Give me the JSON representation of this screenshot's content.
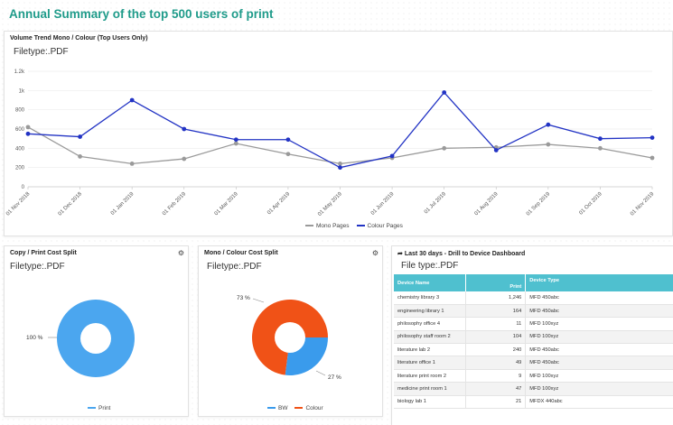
{
  "page": {
    "title": "Annual Summary of the top 500 users of print"
  },
  "trend": {
    "title": "Volume Trend Mono / Colour (Top Users Only)",
    "subtitle": "Filetype:.PDF",
    "legend": {
      "mono": "Mono Pages",
      "colour": "Colour Pages"
    },
    "colors": {
      "mono": "#9a9a9a",
      "colour": "#2233c4"
    }
  },
  "copy_print": {
    "title": "Copy / Print Cost Split",
    "subtitle": "Filetype:.PDF",
    "slice_label": "100 %",
    "legend": {
      "print": "Print"
    },
    "colors": {
      "print": "#4ba6ef"
    }
  },
  "mono_colour": {
    "title": "Mono / Colour Cost Split",
    "subtitle": "Filetype:.PDF",
    "label_colour": "73 %",
    "label_bw": "27 %",
    "legend": {
      "bw": "BW",
      "colour": "Colour"
    },
    "colors": {
      "bw": "#3a9bec",
      "colour": "#f05217"
    }
  },
  "devices": {
    "title": "Last 30 days - Drill to Device Dashboard",
    "subtitle": "File type:.PDF",
    "headers": {
      "name": "Device Name",
      "print": "Print",
      "type": "Device Type"
    },
    "rows": [
      {
        "name": "chemistry library 3",
        "print": "1,246",
        "type": "MFD 450abc"
      },
      {
        "name": "engineering library 1",
        "print": "164",
        "type": "MFD 450abc"
      },
      {
        "name": "philosophy office 4",
        "print": "11",
        "type": "MFD 100xyz"
      },
      {
        "name": "philosophy staff room 2",
        "print": "104",
        "type": "MFD 100xyz"
      },
      {
        "name": "literature lab 2",
        "print": "240",
        "type": "MFD 450abc"
      },
      {
        "name": "literature office 1",
        "print": "49",
        "type": "MFD 450abc"
      },
      {
        "name": "literature print room 2",
        "print": "9",
        "type": "MFD 100xyz"
      },
      {
        "name": "medicine print room 1",
        "print": "47",
        "type": "MFD 100xyz"
      },
      {
        "name": "biology lab 1",
        "print": "21",
        "type": "MFDX 440abc"
      }
    ]
  },
  "chart_data": [
    {
      "type": "line",
      "title": "Volume Trend Mono / Colour (Top Users Only)",
      "x": [
        "01 Nov 2018",
        "01 Dec 2018",
        "01 Jan 2019",
        "01 Feb 2019",
        "01 Mar 2019",
        "01 Apr 2019",
        "01 May 2019",
        "01 Jun 2019",
        "01 Jul 2019",
        "01 Aug 2019",
        "01 Sep 2019",
        "01 Oct 2019",
        "01 Nov 2019"
      ],
      "ylim": [
        0,
        1200
      ],
      "yticks": [
        {
          "v": 0,
          "label": "0"
        },
        {
          "v": 200,
          "label": "200"
        },
        {
          "v": 400,
          "label": "400"
        },
        {
          "v": 600,
          "label": "600"
        },
        {
          "v": 800,
          "label": "800"
        },
        {
          "v": 1000,
          "label": "1k"
        },
        {
          "v": 1200,
          "label": "1.2k"
        }
      ],
      "grid": true,
      "legend": "bottom",
      "series": [
        {
          "name": "Mono Pages",
          "values": [
            620,
            315,
            240,
            290,
            450,
            340,
            240,
            300,
            400,
            410,
            440,
            400,
            300
          ]
        },
        {
          "name": "Colour Pages",
          "values": [
            550,
            520,
            900,
            600,
            490,
            490,
            200,
            320,
            980,
            380,
            645,
            500,
            510
          ]
        }
      ]
    },
    {
      "type": "pie",
      "title": "Copy / Print Cost Split",
      "slices": [
        {
          "name": "Print",
          "value": 100,
          "label": "100 %"
        }
      ],
      "legend": "bottom"
    },
    {
      "type": "pie",
      "title": "Mono / Colour Cost Split",
      "slices": [
        {
          "name": "Colour",
          "value": 73,
          "label": "73 %"
        },
        {
          "name": "BW",
          "value": 27,
          "label": "27 %"
        }
      ],
      "legend": "bottom"
    }
  ]
}
